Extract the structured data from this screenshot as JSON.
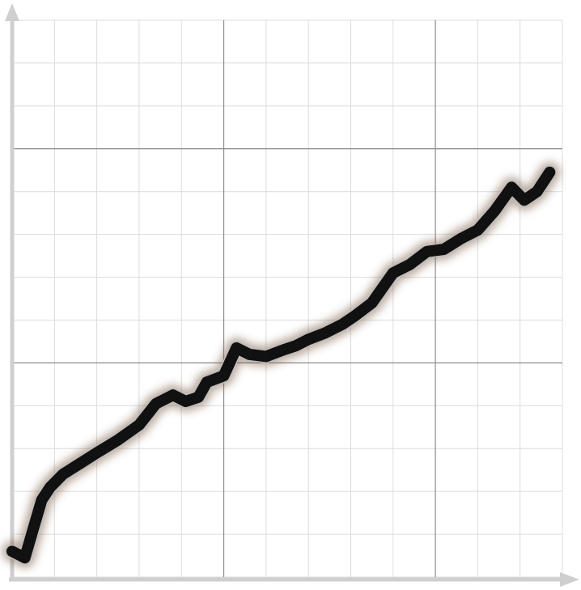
{
  "chart_data": {
    "type": "line",
    "title": "",
    "xlabel": "",
    "ylabel": "",
    "xlim": [
      0,
      13
    ],
    "ylim": [
      0,
      13
    ],
    "grid": true,
    "series": [
      {
        "values": [
          [
            0.0,
            0.6
          ],
          [
            0.3,
            0.45
          ],
          [
            0.55,
            1.3
          ],
          [
            0.7,
            1.8
          ],
          [
            0.9,
            2.1
          ],
          [
            1.2,
            2.4
          ],
          [
            1.6,
            2.65
          ],
          [
            2.0,
            2.9
          ],
          [
            2.5,
            3.2
          ],
          [
            3.0,
            3.55
          ],
          [
            3.4,
            4.05
          ],
          [
            3.8,
            4.25
          ],
          [
            4.1,
            4.1
          ],
          [
            4.4,
            4.2
          ],
          [
            4.6,
            4.55
          ],
          [
            5.0,
            4.7
          ],
          [
            5.3,
            5.35
          ],
          [
            5.6,
            5.2
          ],
          [
            6.0,
            5.15
          ],
          [
            6.4,
            5.3
          ],
          [
            6.7,
            5.4
          ],
          [
            7.0,
            5.55
          ],
          [
            7.4,
            5.7
          ],
          [
            7.8,
            5.9
          ],
          [
            8.1,
            6.1
          ],
          [
            8.5,
            6.4
          ],
          [
            9.0,
            7.1
          ],
          [
            9.4,
            7.3
          ],
          [
            9.8,
            7.6
          ],
          [
            10.2,
            7.65
          ],
          [
            10.6,
            7.9
          ],
          [
            11.0,
            8.1
          ],
          [
            11.4,
            8.55
          ],
          [
            11.8,
            9.1
          ],
          [
            12.1,
            8.8
          ],
          [
            12.4,
            9.0
          ],
          [
            12.7,
            9.45
          ]
        ]
      }
    ],
    "colors": {
      "line": "#111111",
      "glow": "#6b4a2a",
      "axis": "#cfcfcf",
      "minor_grid": "#dcdcdc",
      "major_grid": "#8a8a8a"
    }
  }
}
